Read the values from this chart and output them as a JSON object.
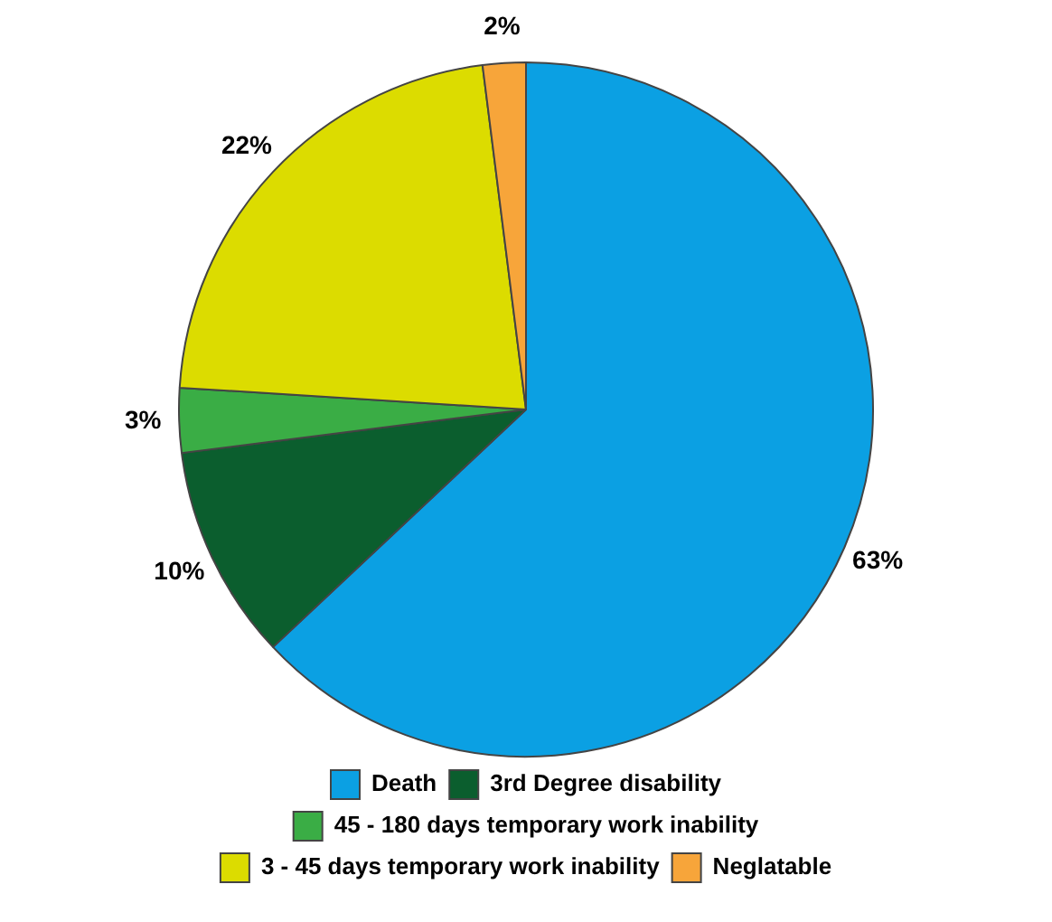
{
  "chart_data": {
    "type": "pie",
    "categories": [
      "Death",
      "3rd Degree disability",
      "45 - 180 days temporary work inability",
      "3 - 45 days temporary work inability",
      "Neglatable"
    ],
    "values": [
      63,
      10,
      3,
      22,
      2
    ],
    "colors": [
      "#0ba0e3",
      "#0b5e2e",
      "#3aad45",
      "#dcdc00",
      "#f7a53a"
    ],
    "value_labels": [
      "63%",
      "10%",
      "3%",
      "22%",
      "2%"
    ],
    "legend": "bottom"
  }
}
